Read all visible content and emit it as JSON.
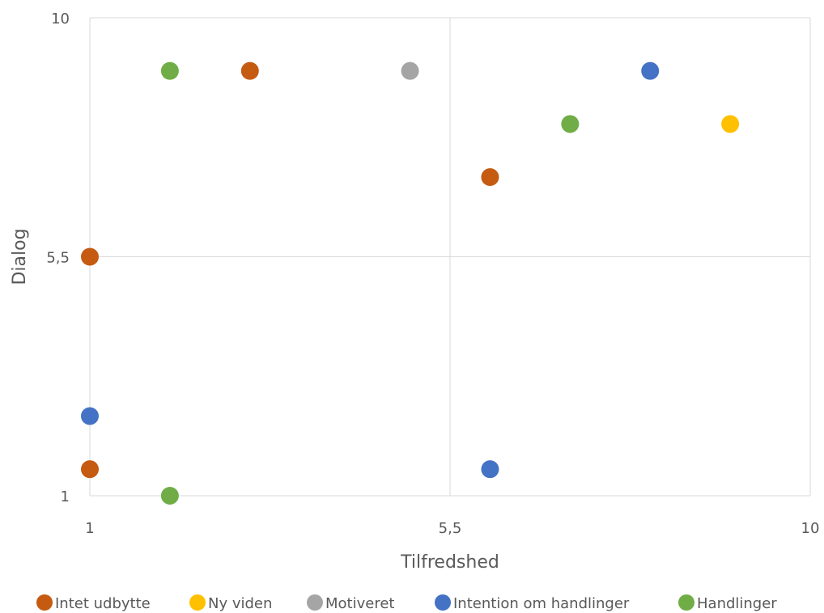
{
  "chart_data": {
    "type": "scatter",
    "xlabel": "Tilfredshed",
    "ylabel": "Dialog",
    "xlim": [
      1,
      10
    ],
    "ylim": [
      1,
      10
    ],
    "x_ticks": [
      "1",
      "5,5",
      "10"
    ],
    "y_ticks": [
      "1",
      "5,5",
      "10"
    ],
    "grid": true,
    "legend_position": "bottom",
    "series": [
      {
        "name": "Intet udbytte",
        "color": "#C55A11",
        "points": [
          [
            1,
            1.5
          ],
          [
            1,
            5.5
          ],
          [
            3,
            9
          ],
          [
            6,
            7
          ]
        ]
      },
      {
        "name": "Ny viden",
        "color": "#FFC000",
        "points": [
          [
            9,
            8
          ]
        ]
      },
      {
        "name": "Motiveret",
        "color": "#A5A5A5",
        "points": [
          [
            5,
            9
          ]
        ]
      },
      {
        "name": "Intention om handlinger",
        "color": "#4472C4",
        "points": [
          [
            1,
            2.5
          ],
          [
            6,
            1.5
          ],
          [
            8,
            9
          ]
        ]
      },
      {
        "name": "Handlinger",
        "color": "#70AD47",
        "points": [
          [
            2,
            1
          ],
          [
            2,
            9
          ],
          [
            7,
            8
          ]
        ]
      }
    ]
  }
}
